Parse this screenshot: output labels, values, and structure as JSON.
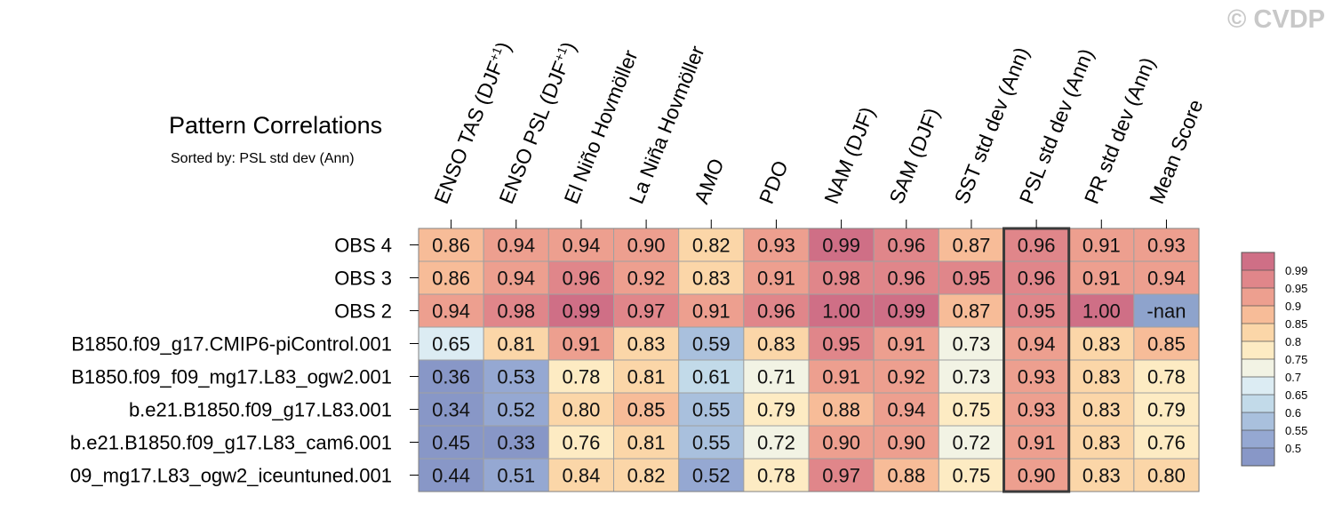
{
  "watermark": "© CVDP",
  "chart_data": {
    "type": "heatmap",
    "title": "Pattern Correlations",
    "subtitle": "Sorted by: PSL std dev (Ann)",
    "columns": [
      {
        "text": "ENSO TAS (DJF",
        "sup": "+1",
        "close": ")"
      },
      {
        "text": "ENSO PSL (DJF",
        "sup": "+1",
        "close": ")"
      },
      {
        "text": "El Niño Hovmöller",
        "sup": "",
        "close": ""
      },
      {
        "text": "La Niña Hovmöller",
        "sup": "",
        "close": ""
      },
      {
        "text": "AMO",
        "sup": "",
        "close": ""
      },
      {
        "text": "PDO",
        "sup": "",
        "close": ""
      },
      {
        "text": "NAM (DJF)",
        "sup": "",
        "close": ""
      },
      {
        "text": "SAM (DJF)",
        "sup": "",
        "close": ""
      },
      {
        "text": "SST std dev (Ann)",
        "sup": "",
        "close": ""
      },
      {
        "text": "PSL std dev (Ann)",
        "sup": "",
        "close": ""
      },
      {
        "text": "PR std dev (Ann)",
        "sup": "",
        "close": ""
      },
      {
        "text": "Mean Score",
        "sup": "",
        "close": ""
      }
    ],
    "rows": [
      "OBS 4",
      "OBS 3",
      "OBS 2",
      "B1850.f09_g17.CMIP6-piControl.001",
      "B1850.f09_f09_mg17.L83_ogw2.001",
      "b.e21.B1850.f09_g17.L83.001",
      "b.e21.B1850.f09_g17.L83_cam6.001",
      "09_mg17.L83_ogw2_iceuntuned.001"
    ],
    "values": [
      [
        0.86,
        0.94,
        0.94,
        0.9,
        0.82,
        0.93,
        0.99,
        0.96,
        0.87,
        0.96,
        0.91,
        0.93
      ],
      [
        0.86,
        0.94,
        0.96,
        0.92,
        0.83,
        0.91,
        0.98,
        0.96,
        0.95,
        0.96,
        0.91,
        0.94
      ],
      [
        0.94,
        0.98,
        0.99,
        0.97,
        0.91,
        0.96,
        1.0,
        0.99,
        0.87,
        0.95,
        1.0,
        null
      ],
      [
        0.65,
        0.81,
        0.91,
        0.83,
        0.59,
        0.83,
        0.95,
        0.91,
        0.73,
        0.94,
        0.83,
        0.85
      ],
      [
        0.36,
        0.53,
        0.78,
        0.81,
        0.61,
        0.71,
        0.91,
        0.92,
        0.73,
        0.93,
        0.83,
        0.78
      ],
      [
        0.34,
        0.52,
        0.8,
        0.85,
        0.55,
        0.79,
        0.88,
        0.94,
        0.75,
        0.93,
        0.83,
        0.79
      ],
      [
        0.45,
        0.33,
        0.76,
        0.81,
        0.55,
        0.72,
        0.9,
        0.9,
        0.72,
        0.91,
        0.83,
        0.76
      ],
      [
        0.44,
        0.51,
        0.84,
        0.82,
        0.52,
        0.78,
        0.97,
        0.88,
        0.75,
        0.9,
        0.83,
        0.8
      ]
    ],
    "cell_labels": [
      [
        "0.86",
        "0.94",
        "0.94",
        "0.90",
        "0.82",
        "0.93",
        "0.99",
        "0.96",
        "0.87",
        "0.96",
        "0.91",
        "0.93"
      ],
      [
        "0.86",
        "0.94",
        "0.96",
        "0.92",
        "0.83",
        "0.91",
        "0.98",
        "0.96",
        "0.95",
        "0.96",
        "0.91",
        "0.94"
      ],
      [
        "0.94",
        "0.98",
        "0.99",
        "0.97",
        "0.91",
        "0.96",
        "1.00",
        "0.99",
        "0.87",
        "0.95",
        "1.00",
        "-nan"
      ],
      [
        "0.65",
        "0.81",
        "0.91",
        "0.83",
        "0.59",
        "0.83",
        "0.95",
        "0.91",
        "0.73",
        "0.94",
        "0.83",
        "0.85"
      ],
      [
        "0.36",
        "0.53",
        "0.78",
        "0.81",
        "0.61",
        "0.71",
        "0.91",
        "0.92",
        "0.73",
        "0.93",
        "0.83",
        "0.78"
      ],
      [
        "0.34",
        "0.52",
        "0.80",
        "0.85",
        "0.55",
        "0.79",
        "0.88",
        "0.94",
        "0.75",
        "0.93",
        "0.83",
        "0.79"
      ],
      [
        "0.45",
        "0.33",
        "0.76",
        "0.81",
        "0.55",
        "0.72",
        "0.90",
        "0.90",
        "0.72",
        "0.91",
        "0.83",
        "0.76"
      ],
      [
        "0.44",
        "0.51",
        "0.84",
        "0.82",
        "0.52",
        "0.78",
        "0.97",
        "0.88",
        "0.75",
        "0.90",
        "0.83",
        "0.80"
      ]
    ],
    "highlight_column": "PSL std dev (Ann)",
    "nan_color": "#8ea3cc",
    "colorbar": {
      "labels": [
        "0.99",
        "0.95",
        "0.9",
        "0.85",
        "0.8",
        "0.75",
        "0.7",
        "0.65",
        "0.6",
        "0.55",
        "0.5"
      ],
      "bins": [
        {
          "min": 0.99,
          "color": "#cf6f86"
        },
        {
          "min": 0.95,
          "color": "#e0868a"
        },
        {
          "min": 0.9,
          "color": "#ed9f8f"
        },
        {
          "min": 0.85,
          "color": "#f7bc98"
        },
        {
          "min": 0.8,
          "color": "#fbd6a8"
        },
        {
          "min": 0.75,
          "color": "#fdebc3"
        },
        {
          "min": 0.7,
          "color": "#f2f3e4"
        },
        {
          "min": 0.65,
          "color": "#dcecf3"
        },
        {
          "min": 0.6,
          "color": "#c2dae9"
        },
        {
          "min": 0.55,
          "color": "#a9c0dd"
        },
        {
          "min": 0.5,
          "color": "#95a8d2"
        },
        {
          "min": -1.0,
          "color": "#8897c7"
        }
      ]
    }
  }
}
